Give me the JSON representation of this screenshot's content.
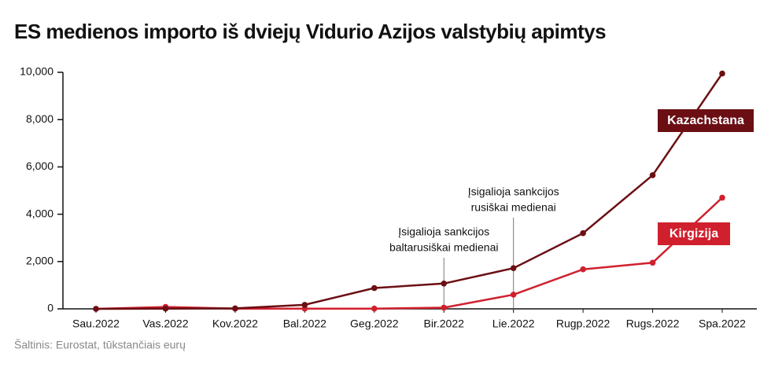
{
  "chart_data": {
    "type": "line",
    "title": "ES medienos importo iš dviejų Vidurio Azijos valstybių apimtys",
    "source": "Šaltinis: Eurostat, tūkstančiais eurų",
    "categories": [
      "Sau.2022",
      "Vas.2022",
      "Kov.2022",
      "Bal.2022",
      "Geg.2022",
      "Bir.2022",
      "Lie.2022",
      "Rugp.2022",
      "Rugs.2022",
      "Spa.2022"
    ],
    "series": [
      {
        "name": "Kazachstana",
        "color": "#6b0f14",
        "values": [
          0,
          10,
          20,
          170,
          880,
          1070,
          1720,
          3200,
          5650,
          9950
        ]
      },
      {
        "name": "Kirgizija",
        "color": "#d0202e",
        "values": [
          0,
          80,
          10,
          10,
          10,
          50,
          600,
          1670,
          1950,
          4700
        ]
      }
    ],
    "ylim": [
      0,
      10000
    ],
    "yticks": [
      0,
      {
        "value": 2000,
        "label": "2,000"
      },
      {
        "value": 4000,
        "label": "4,000"
      },
      {
        "value": 6000,
        "label": "6,000"
      },
      {
        "value": 8000,
        "label": "8,000"
      },
      {
        "value": 10000,
        "label": "10,000"
      }
    ],
    "annotations": [
      {
        "at": "Bir.2022",
        "lines": [
          "Įsigalioja sankcijos",
          "baltarusiškai medienai"
        ]
      },
      {
        "at": "Lie.2022",
        "lines": [
          "Įsigalioja sankcijos",
          "rusiškai medienai"
        ]
      }
    ]
  }
}
